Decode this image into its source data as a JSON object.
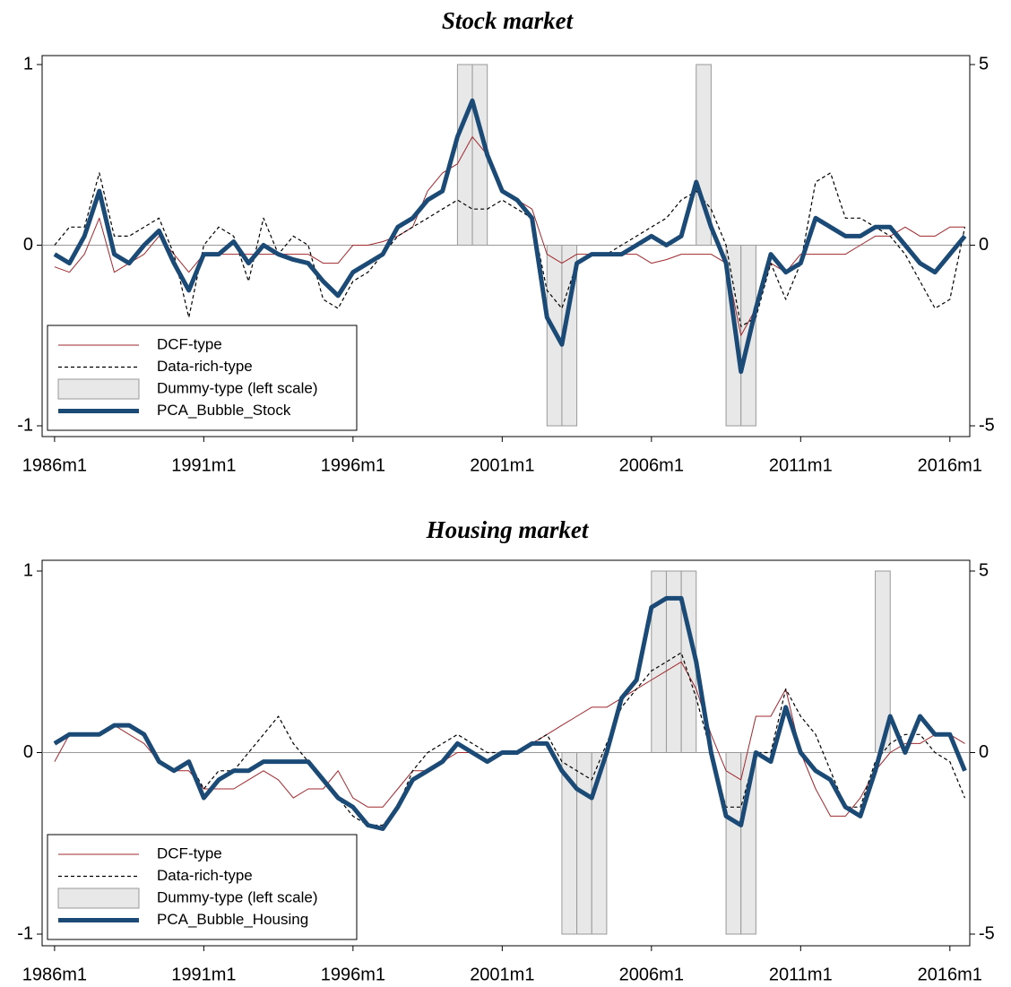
{
  "chart_data": [
    {
      "type": "line",
      "title": "Stock market",
      "x": [
        "1986m1",
        "1986m7",
        "1987m1",
        "1987m7",
        "1988m1",
        "1988m7",
        "1989m1",
        "1989m7",
        "1990m1",
        "1990m7",
        "1991m1",
        "1991m7",
        "1992m1",
        "1992m7",
        "1993m1",
        "1993m7",
        "1994m1",
        "1994m7",
        "1995m1",
        "1995m7",
        "1996m1",
        "1996m7",
        "1997m1",
        "1997m7",
        "1998m1",
        "1998m7",
        "1999m1",
        "1999m7",
        "2000m1",
        "2000m7",
        "2001m1",
        "2001m7",
        "2002m1",
        "2002m7",
        "2003m1",
        "2003m7",
        "2004m1",
        "2004m7",
        "2005m1",
        "2005m7",
        "2006m1",
        "2006m7",
        "2007m1",
        "2007m7",
        "2008m1",
        "2008m7",
        "2009m1",
        "2009m7",
        "2010m1",
        "2010m7",
        "2011m1",
        "2011m7",
        "2012m1",
        "2012m7",
        "2013m1",
        "2013m7",
        "2014m1",
        "2014m7",
        "2015m1",
        "2015m7",
        "2016m1",
        "2016m7"
      ],
      "xlim": [
        "1985m8",
        "2016m9"
      ],
      "xticks": [
        "1986m1",
        "1991m1",
        "1996m1",
        "2001m1",
        "2006m1",
        "2011m1",
        "2016m1"
      ],
      "ylim": [
        -1,
        1
      ],
      "yticks": [
        -1,
        0,
        1
      ],
      "y2lim": [
        -5,
        5
      ],
      "y2ticks": [
        -5,
        0,
        5
      ],
      "refline": 0,
      "legend": "bottom-left",
      "series": [
        {
          "name": "DCF-type",
          "type": "line",
          "style": "thin",
          "color": "#a0282d",
          "axis": "y2",
          "values": [
            -0.6,
            -0.75,
            -0.25,
            0.75,
            -0.75,
            -0.5,
            -0.25,
            0.25,
            -0.25,
            -0.75,
            -0.25,
            -0.25,
            -0.25,
            -0.25,
            -0.25,
            -0.25,
            -0.25,
            -0.25,
            -0.5,
            -0.5,
            0,
            0,
            0.1,
            0.25,
            0.5,
            1.5,
            2,
            2.25,
            3,
            2.5,
            1.5,
            1.25,
            1,
            -0.25,
            -0.5,
            -0.25,
            -0.25,
            -0.25,
            -0.25,
            -0.25,
            -0.5,
            -0.4,
            -0.25,
            -0.25,
            -0.25,
            -0.5,
            -2.5,
            -1.75,
            -0.5,
            -0.75,
            -0.25,
            -0.25,
            -0.25,
            -0.25,
            0,
            0.25,
            0.25,
            0.5,
            0.25,
            0.25,
            0.5,
            0.5
          ]
        },
        {
          "name": "Data-rich-type",
          "type": "line",
          "style": "dashed",
          "color": "#000000",
          "axis": "y2",
          "values": [
            0,
            0.5,
            0.5,
            2,
            0.25,
            0.25,
            0.5,
            0.75,
            -0.25,
            -2,
            0,
            0.5,
            0.25,
            -1,
            0.75,
            -0.25,
            0.25,
            0,
            -1.5,
            -1.75,
            -1,
            -0.75,
            -0.25,
            0.25,
            0.5,
            0.75,
            1,
            1.25,
            1,
            1,
            1.25,
            1,
            0.75,
            -1.25,
            -1.75,
            -0.5,
            -0.25,
            -0.25,
            0,
            0.25,
            0.5,
            0.75,
            1.25,
            1.5,
            1,
            0,
            -2.25,
            -2,
            -0.5,
            -1.5,
            -0.5,
            1.75,
            2,
            0.75,
            0.75,
            0.5,
            0.25,
            -0.25,
            -1,
            -1.75,
            -1.5,
            0.5
          ]
        },
        {
          "name": "Dummy-type (left scale)",
          "type": "bar",
          "color": "#e8e8e8",
          "values": [
            0,
            0,
            0,
            0,
            0,
            0,
            0,
            0,
            0,
            0,
            0,
            0,
            0,
            0,
            0,
            0,
            0,
            0,
            0,
            0,
            0,
            0,
            0,
            0,
            0,
            0,
            0,
            1,
            1,
            0,
            0,
            0,
            0,
            -1,
            -1,
            0,
            0,
            0,
            0,
            0,
            0,
            0,
            0,
            1,
            0,
            -1,
            -1,
            0,
            0,
            0,
            0,
            0,
            0,
            0,
            0,
            0,
            0,
            0,
            0,
            0,
            0,
            0
          ]
        },
        {
          "name": "PCA_Bubble_Stock",
          "type": "line",
          "style": "thick",
          "color": "#1a4a75",
          "axis": "y2",
          "values": [
            -0.25,
            -0.5,
            0.25,
            1.5,
            -0.25,
            -0.5,
            0,
            0.4,
            -0.5,
            -1.25,
            -0.25,
            -0.25,
            0.1,
            -0.5,
            0,
            -0.25,
            -0.4,
            -0.5,
            -1,
            -1.4,
            -0.75,
            -0.5,
            -0.25,
            0.5,
            0.75,
            1.25,
            1.5,
            3,
            4,
            2.5,
            1.5,
            1.25,
            0.75,
            -2,
            -2.75,
            -0.5,
            -0.25,
            -0.25,
            -0.25,
            0,
            0.25,
            0,
            0.25,
            1.75,
            0.5,
            -0.5,
            -3.5,
            -1.75,
            -0.25,
            -0.75,
            -0.5,
            0.75,
            0.5,
            0.25,
            0.25,
            0.5,
            0.5,
            0,
            -0.5,
            -0.75,
            -0.25,
            0.25
          ]
        }
      ]
    },
    {
      "type": "line",
      "title": "Housing market",
      "x": [
        "1986m1",
        "1986m7",
        "1987m1",
        "1987m7",
        "1988m1",
        "1988m7",
        "1989m1",
        "1989m7",
        "1990m1",
        "1990m7",
        "1991m1",
        "1991m7",
        "1992m1",
        "1992m7",
        "1993m1",
        "1993m7",
        "1994m1",
        "1994m7",
        "1995m1",
        "1995m7",
        "1996m1",
        "1996m7",
        "1997m1",
        "1997m7",
        "1998m1",
        "1998m7",
        "1999m1",
        "1999m7",
        "2000m1",
        "2000m7",
        "2001m1",
        "2001m7",
        "2002m1",
        "2002m7",
        "2003m1",
        "2003m7",
        "2004m1",
        "2004m7",
        "2005m1",
        "2005m7",
        "2006m1",
        "2006m7",
        "2007m1",
        "2007m7",
        "2008m1",
        "2008m7",
        "2009m1",
        "2009m7",
        "2010m1",
        "2010m7",
        "2011m1",
        "2011m7",
        "2012m1",
        "2012m7",
        "2013m1",
        "2013m7",
        "2014m1",
        "2014m7",
        "2015m1",
        "2015m7",
        "2016m1",
        "2016m7"
      ],
      "xlim": [
        "1985m8",
        "2016m9"
      ],
      "xticks": [
        "1986m1",
        "1991m1",
        "1996m1",
        "2001m1",
        "2006m1",
        "2011m1",
        "2016m1"
      ],
      "ylim": [
        -1,
        1
      ],
      "yticks": [
        -1,
        0,
        1
      ],
      "y2lim": [
        -5,
        5
      ],
      "y2ticks": [
        -5,
        0,
        5
      ],
      "refline": 0,
      "legend": "bottom-left",
      "series": [
        {
          "name": "DCF-type",
          "type": "line",
          "style": "thin",
          "color": "#a0282d",
          "axis": "y2",
          "values": [
            -0.25,
            0.5,
            0.5,
            0.5,
            0.75,
            0.5,
            0.25,
            -0.25,
            -0.5,
            -0.5,
            -1,
            -1,
            -1,
            -0.75,
            -0.5,
            -0.75,
            -1.25,
            -1,
            -1,
            -0.5,
            -1.25,
            -1.5,
            -1.5,
            -1,
            -0.5,
            -0.5,
            -0.25,
            0,
            0,
            -0.25,
            0,
            0,
            0.25,
            0.5,
            0.75,
            1,
            1.25,
            1.25,
            1.5,
            1.75,
            2,
            2.25,
            2.5,
            1.75,
            0.5,
            -0.5,
            -0.75,
            1,
            1,
            1.75,
            0,
            -1,
            -1.75,
            -1.75,
            -1.25,
            -0.5,
            0,
            0.25,
            0.25,
            0.5,
            0.5,
            0.25
          ]
        },
        {
          "name": "Data-rich-type",
          "type": "line",
          "style": "dashed",
          "color": "#000000",
          "axis": "y2",
          "values": [
            0.25,
            0.5,
            0.5,
            0.5,
            0.75,
            0.75,
            0.5,
            -0.25,
            -0.5,
            -0.25,
            -1,
            -0.5,
            -0.5,
            0,
            0.5,
            1,
            0.25,
            -0.25,
            -0.75,
            -1.25,
            -1.75,
            -2,
            -2,
            -1.5,
            -0.5,
            0,
            0.25,
            0.5,
            0.25,
            0,
            0,
            0,
            0.25,
            0.5,
            -0.25,
            -0.5,
            -0.75,
            0.25,
            1.25,
            1.75,
            2.25,
            2.5,
            2.75,
            1.5,
            0,
            -1.5,
            -1.5,
            0,
            0,
            1.75,
            1,
            0.5,
            -0.5,
            -1.5,
            -1.5,
            -0.25,
            0.25,
            0.5,
            0.5,
            0,
            -0.25,
            -1.25
          ]
        },
        {
          "name": "Dummy-type (left scale)",
          "type": "bar",
          "color": "#e8e8e8",
          "values": [
            0,
            0,
            0,
            0,
            0,
            0,
            0,
            0,
            0,
            0,
            0,
            0,
            0,
            0,
            0,
            0,
            0,
            0,
            0,
            0,
            0,
            0,
            0,
            0,
            0,
            0,
            0,
            0,
            0,
            0,
            0,
            0,
            0,
            0,
            -1,
            -1,
            -1,
            0,
            0,
            0,
            1,
            1,
            1,
            0,
            0,
            -1,
            -1,
            0,
            0,
            0,
            0,
            0,
            0,
            0,
            0,
            1,
            0,
            0,
            0,
            0,
            0,
            0
          ]
        },
        {
          "name": "PCA_Bubble_Housing",
          "type": "line",
          "style": "thick",
          "color": "#1a4a75",
          "axis": "y2",
          "values": [
            0.25,
            0.5,
            0.5,
            0.5,
            0.75,
            0.75,
            0.5,
            -0.25,
            -0.5,
            -0.25,
            -1.25,
            -0.75,
            -0.5,
            -0.5,
            -0.25,
            -0.25,
            -0.25,
            -0.25,
            -0.75,
            -1.25,
            -1.5,
            -2,
            -2.1,
            -1.5,
            -0.75,
            -0.5,
            -0.25,
            0.25,
            0,
            -0.25,
            0,
            0,
            0.25,
            0.25,
            -0.5,
            -1,
            -1.25,
            0,
            1.5,
            2,
            4,
            4.25,
            4.25,
            2.5,
            0,
            -1.75,
            -2,
            0,
            -0.25,
            1.25,
            0,
            -0.5,
            -0.75,
            -1.5,
            -1.75,
            -0.5,
            1,
            0,
            1,
            0.5,
            0.5,
            -0.5
          ]
        }
      ]
    }
  ]
}
